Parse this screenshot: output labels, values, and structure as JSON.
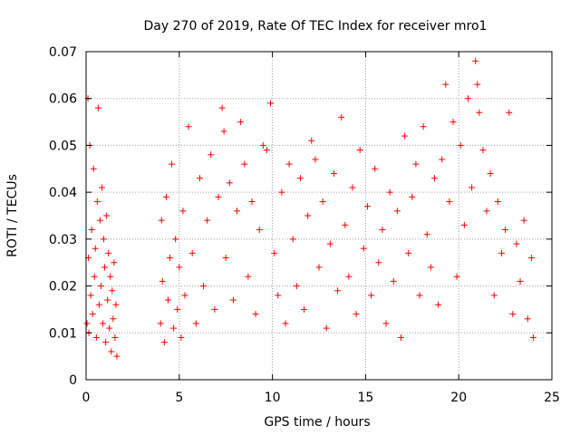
{
  "chart_data": {
    "type": "scatter",
    "title": "Day 270 of 2019, Rate Of TEC Index for receiver mro1",
    "xlabel": "GPS time / hours",
    "ylabel": "ROTI / TECUs",
    "xlim": [
      0,
      25
    ],
    "ylim": [
      0,
      0.07
    ],
    "xticks": [
      0,
      5,
      10,
      15,
      20,
      25
    ],
    "xtick_labels": [
      "0",
      "5",
      "10",
      "15",
      "20",
      "25"
    ],
    "yticks": [
      0,
      0.01,
      0.02,
      0.03,
      0.04,
      0.05,
      0.06,
      0.07
    ],
    "ytick_labels": [
      "0",
      "0.01",
      "0.02",
      "0.03",
      "0.04",
      "0.05",
      "0.06",
      "0.07"
    ],
    "grid": true,
    "marker": "+",
    "color": "#ff0000",
    "series": [
      {
        "points": [
          [
            0.05,
            0.012
          ],
          [
            0.1,
            0.06
          ],
          [
            0.12,
            0.026
          ],
          [
            0.15,
            0.01
          ],
          [
            0.2,
            0.05
          ],
          [
            0.25,
            0.018
          ],
          [
            0.3,
            0.032
          ],
          [
            0.35,
            0.014
          ],
          [
            0.4,
            0.045
          ],
          [
            0.45,
            0.022
          ],
          [
            0.5,
            0.028
          ],
          [
            0.55,
            0.009
          ],
          [
            0.6,
            0.038
          ],
          [
            0.65,
            0.058
          ],
          [
            0.7,
            0.016
          ],
          [
            0.75,
            0.034
          ],
          [
            0.8,
            0.02
          ],
          [
            0.85,
            0.041
          ],
          [
            0.9,
            0.012
          ],
          [
            0.95,
            0.03
          ],
          [
            1.0,
            0.024
          ],
          [
            1.05,
            0.008
          ],
          [
            1.1,
            0.035
          ],
          [
            1.15,
            0.017
          ],
          [
            1.2,
            0.027
          ],
          [
            1.25,
            0.011
          ],
          [
            1.3,
            0.022
          ],
          [
            1.35,
            0.006
          ],
          [
            1.4,
            0.019
          ],
          [
            1.45,
            0.013
          ],
          [
            1.5,
            0.025
          ],
          [
            1.55,
            0.009
          ],
          [
            1.6,
            0.016
          ],
          [
            1.65,
            0.005
          ],
          [
            4.0,
            0.012
          ],
          [
            4.05,
            0.034
          ],
          [
            4.1,
            0.021
          ],
          [
            4.2,
            0.008
          ],
          [
            4.3,
            0.039
          ],
          [
            4.4,
            0.017
          ],
          [
            4.5,
            0.026
          ],
          [
            4.6,
            0.046
          ],
          [
            4.7,
            0.011
          ],
          [
            4.8,
            0.03
          ],
          [
            4.9,
            0.015
          ],
          [
            5.0,
            0.024
          ],
          [
            5.1,
            0.009
          ],
          [
            5.2,
            0.036
          ],
          [
            5.3,
            0.018
          ],
          [
            5.5,
            0.054
          ],
          [
            5.7,
            0.027
          ],
          [
            5.9,
            0.012
          ],
          [
            6.1,
            0.043
          ],
          [
            6.3,
            0.02
          ],
          [
            6.5,
            0.034
          ],
          [
            6.7,
            0.048
          ],
          [
            6.9,
            0.015
          ],
          [
            7.1,
            0.039
          ],
          [
            7.3,
            0.058
          ],
          [
            7.4,
            0.053
          ],
          [
            7.5,
            0.026
          ],
          [
            7.7,
            0.042
          ],
          [
            7.9,
            0.017
          ],
          [
            8.1,
            0.036
          ],
          [
            8.3,
            0.055
          ],
          [
            8.5,
            0.046
          ],
          [
            8.7,
            0.022
          ],
          [
            8.9,
            0.038
          ],
          [
            9.1,
            0.014
          ],
          [
            9.3,
            0.032
          ],
          [
            9.5,
            0.05
          ],
          [
            9.7,
            0.049
          ],
          [
            9.9,
            0.059
          ],
          [
            10.1,
            0.027
          ],
          [
            10.3,
            0.018
          ],
          [
            10.5,
            0.04
          ],
          [
            10.7,
            0.012
          ],
          [
            10.9,
            0.046
          ],
          [
            11.1,
            0.03
          ],
          [
            11.3,
            0.02
          ],
          [
            11.5,
            0.043
          ],
          [
            11.7,
            0.015
          ],
          [
            11.9,
            0.035
          ],
          [
            12.1,
            0.051
          ],
          [
            12.3,
            0.047
          ],
          [
            12.5,
            0.024
          ],
          [
            12.7,
            0.038
          ],
          [
            12.9,
            0.011
          ],
          [
            13.1,
            0.029
          ],
          [
            13.3,
            0.044
          ],
          [
            13.5,
            0.019
          ],
          [
            13.7,
            0.056
          ],
          [
            13.9,
            0.033
          ],
          [
            14.1,
            0.022
          ],
          [
            14.3,
            0.041
          ],
          [
            14.5,
            0.014
          ],
          [
            14.7,
            0.049
          ],
          [
            14.9,
            0.028
          ],
          [
            15.1,
            0.037
          ],
          [
            15.3,
            0.018
          ],
          [
            15.5,
            0.045
          ],
          [
            15.7,
            0.025
          ],
          [
            15.9,
            0.032
          ],
          [
            16.1,
            0.012
          ],
          [
            16.3,
            0.04
          ],
          [
            16.5,
            0.021
          ],
          [
            16.7,
            0.036
          ],
          [
            16.9,
            0.009
          ],
          [
            17.1,
            0.052
          ],
          [
            17.3,
            0.027
          ],
          [
            17.5,
            0.039
          ],
          [
            17.7,
            0.046
          ],
          [
            17.9,
            0.018
          ],
          [
            18.1,
            0.054
          ],
          [
            18.3,
            0.031
          ],
          [
            18.5,
            0.024
          ],
          [
            18.7,
            0.043
          ],
          [
            18.9,
            0.016
          ],
          [
            19.1,
            0.047
          ],
          [
            19.3,
            0.063
          ],
          [
            19.5,
            0.038
          ],
          [
            19.7,
            0.055
          ],
          [
            19.9,
            0.022
          ],
          [
            20.1,
            0.05
          ],
          [
            20.3,
            0.033
          ],
          [
            20.5,
            0.06
          ],
          [
            20.7,
            0.041
          ],
          [
            20.9,
            0.068
          ],
          [
            21.0,
            0.063
          ],
          [
            21.1,
            0.057
          ],
          [
            21.3,
            0.049
          ],
          [
            21.5,
            0.036
          ],
          [
            21.7,
            0.044
          ],
          [
            21.9,
            0.018
          ],
          [
            22.1,
            0.038
          ],
          [
            22.3,
            0.027
          ],
          [
            22.5,
            0.032
          ],
          [
            22.7,
            0.057
          ],
          [
            22.9,
            0.014
          ],
          [
            23.1,
            0.029
          ],
          [
            23.3,
            0.021
          ],
          [
            23.5,
            0.034
          ],
          [
            23.7,
            0.013
          ],
          [
            23.9,
            0.026
          ],
          [
            24.0,
            0.009
          ]
        ]
      }
    ]
  }
}
